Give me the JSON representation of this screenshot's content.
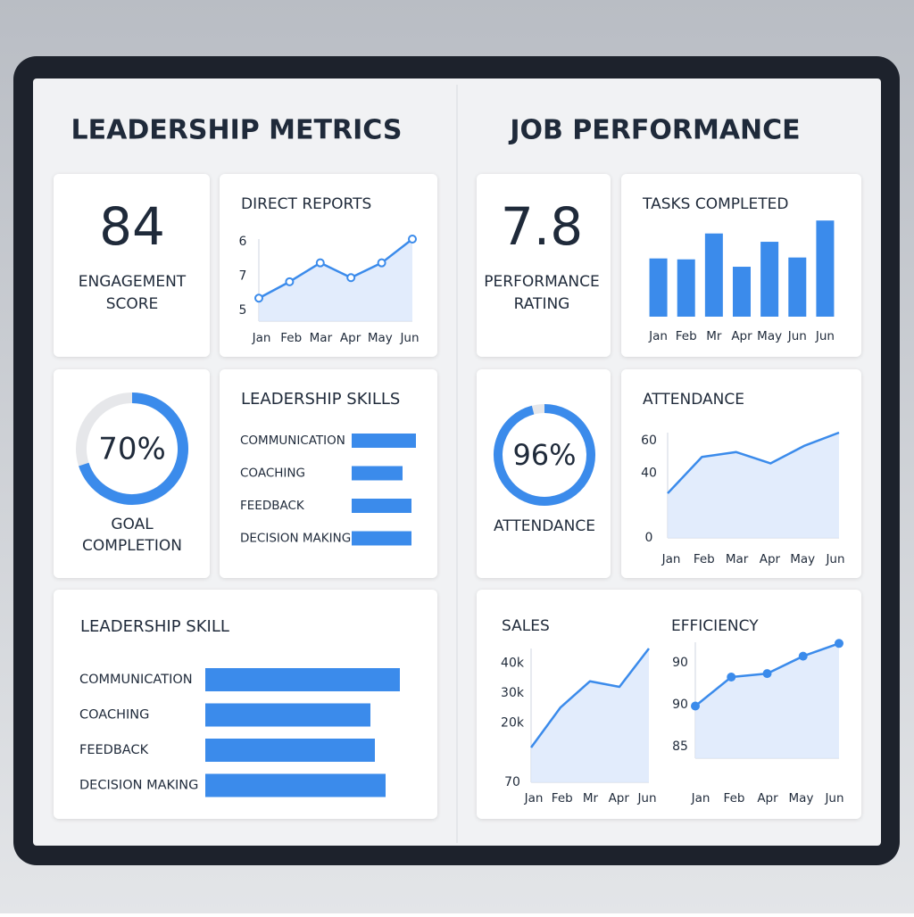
{
  "leadership": {
    "title": "LEADERSHIP METRICS",
    "engagement": {
      "value": 84,
      "label_lines": [
        "ENGAGEMENT",
        "SCORE"
      ]
    },
    "direct_reports": {
      "type": "line",
      "title": "DIRECT REPORTS",
      "categories": [
        "Jan",
        "Feb",
        "Mar",
        "Apr",
        "May",
        "Jun"
      ],
      "values": [
        2.8,
        4.8,
        7.1,
        5.3,
        7.1,
        10
      ],
      "ylim": [
        0,
        10
      ],
      "ytick_labels": [
        "6",
        "7",
        "5"
      ],
      "color": "#3b8beb",
      "markers": "open"
    },
    "goal": {
      "type": "donut",
      "value": 70,
      "value_label": "70%",
      "vlim": [
        0,
        100
      ],
      "label_lines": [
        "GOAL",
        "COMPLETION"
      ],
      "color": "#3b8beb"
    },
    "skills": {
      "type": "hbar",
      "title": "LEADERSHIP SKILLS",
      "categories": [
        "COMMUNICATION",
        "COACHING",
        "FEEDBACK",
        "DECISION MAKING"
      ],
      "values": [
        72,
        57,
        67,
        67
      ],
      "xlim": [
        0,
        80
      ],
      "color": "#3b8beb"
    },
    "skills_large": {
      "type": "hbar",
      "title": "LEADERSHIP SKILL",
      "categories": [
        "COMMUNICATION",
        "COACHING",
        "FEEDBACK",
        "DECISION MAKING"
      ],
      "values": [
        218,
        185,
        190,
        202
      ],
      "xlim": [
        0,
        230
      ],
      "color": "#3b8beb"
    }
  },
  "performance": {
    "title": "JOB PERFORMANCE",
    "rating": {
      "value": 7.8,
      "label_lines": [
        "PERFORMANCE",
        "RATING"
      ]
    },
    "tasks": {
      "type": "bar",
      "title": "TASKS COMPLETED",
      "categories": [
        "Jan",
        "Feb",
        "Mr",
        "Apr",
        "May",
        "Jun",
        "Jun"
      ],
      "values": [
        63,
        62,
        90,
        54,
        81,
        64,
        104
      ],
      "ylim": [
        0,
        110
      ],
      "color": "#3b8beb"
    },
    "attendance_gauge": {
      "type": "donut",
      "value": 96,
      "value_label": "96%",
      "vlim": [
        0,
        100
      ],
      "label_lines": [
        "ATTENDANCE"
      ],
      "color": "#3b8beb"
    },
    "attendance": {
      "type": "line",
      "title": "ATTENDANCE",
      "categories": [
        "Jan",
        "Feb",
        "Mar",
        "Apr",
        "May",
        "Jun"
      ],
      "values": [
        27.5,
        50,
        53,
        46,
        57,
        65
      ],
      "ylim": [
        0,
        65
      ],
      "yticks": [
        0,
        40,
        60
      ],
      "color": "#3b8beb"
    },
    "sales": {
      "type": "line",
      "title": "SALES",
      "categories": [
        "Jan",
        "Feb",
        "Mr",
        "Apr",
        "Jun"
      ],
      "values": [
        11750,
        25230,
        34000,
        32120,
        45000
      ],
      "ylim": [
        70,
        45000
      ],
      "yticks": [
        70,
        {
          "value": 20000,
          "label": "20k"
        },
        {
          "value": 30000,
          "label": "30k"
        },
        {
          "value": 40000,
          "label": "40k"
        }
      ],
      "color": "#3b8beb"
    },
    "efficiency": {
      "type": "line",
      "title": "EFFICIENCY",
      "categories": [
        "Jan",
        "Feb",
        "Apr",
        "May",
        "Jun"
      ],
      "values": [
        45,
        70,
        73,
        88,
        99
      ],
      "ylim": [
        0,
        100
      ],
      "ytick_labels": [
        "90",
        "90",
        "85"
      ],
      "color": "#3b8beb",
      "markers": "filled"
    }
  }
}
